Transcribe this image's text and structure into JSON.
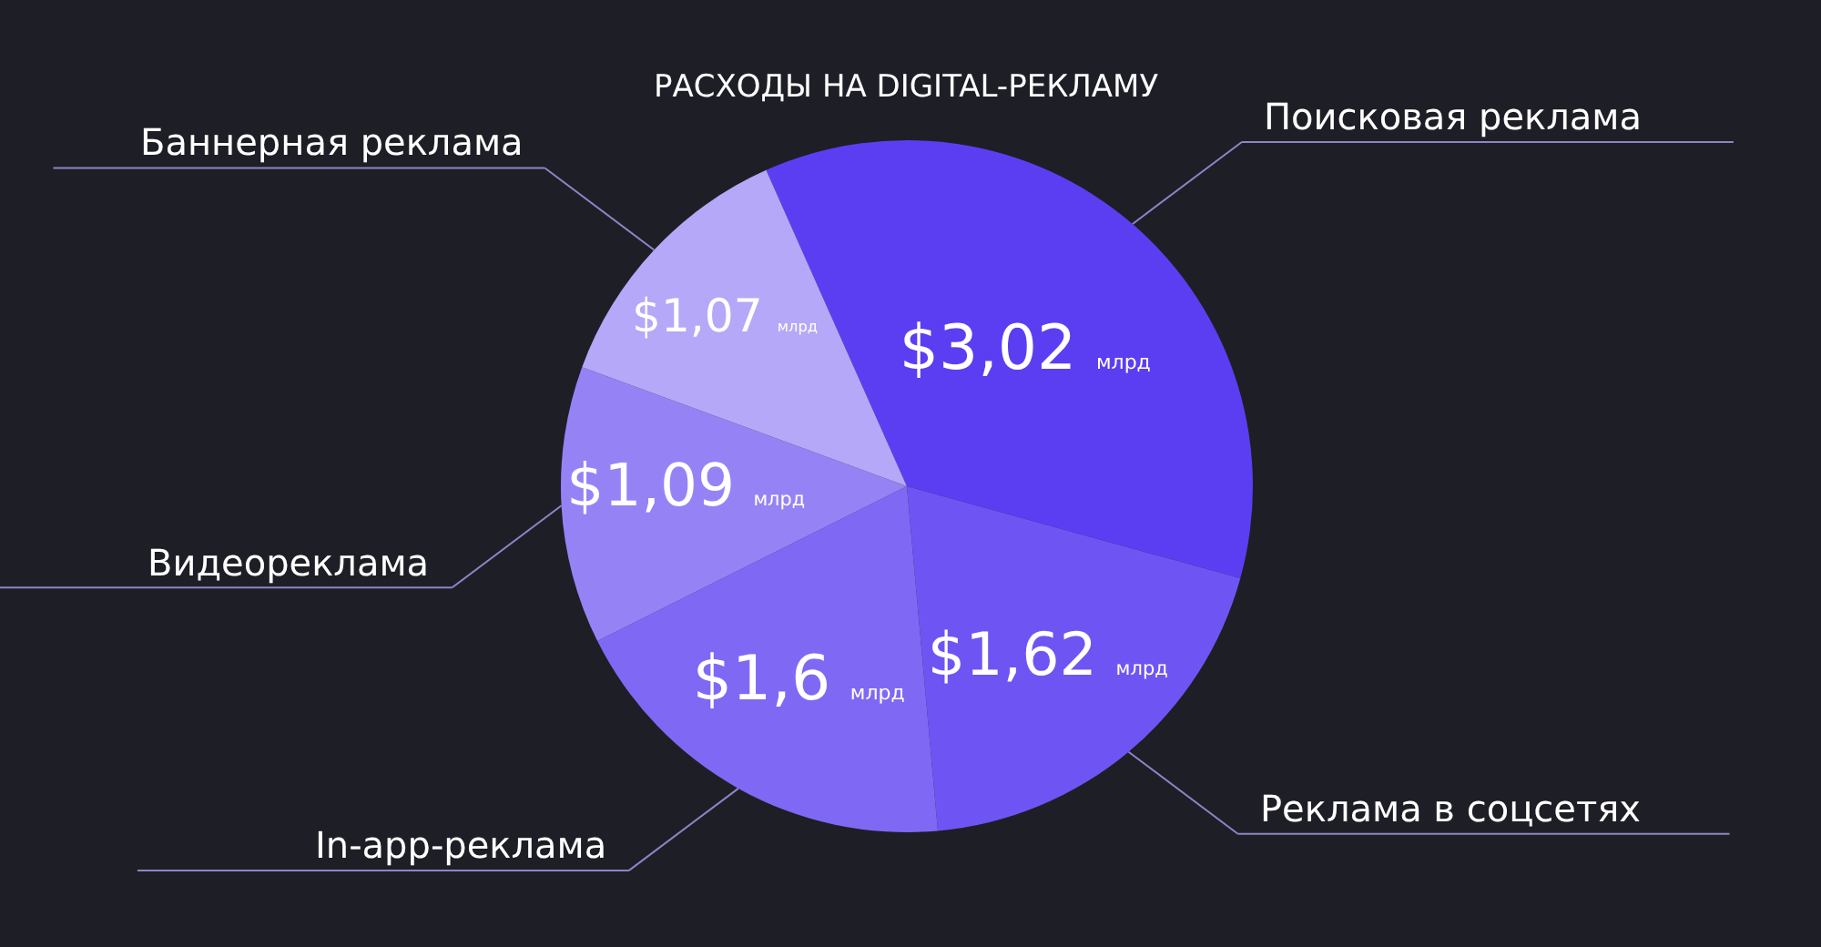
{
  "chart_data": {
    "type": "pie",
    "title": "РАСХОДЫ НА DIGITAL-РЕКЛАМУ",
    "categories": [
      "Поисковая реклама",
      "Реклама в соцсетях",
      "In-app-реклама",
      "Видеореклама",
      "Баннерная реклама"
    ],
    "values": [
      3.02,
      1.62,
      1.6,
      1.09,
      1.07
    ],
    "value_labels": [
      "$3,02 млрд",
      "$1,62 млрд",
      "$1,6 млрд",
      "$1,09 млрд",
      "$1,07 млрд"
    ],
    "colors": [
      "#5b3ef2",
      "#6e55f3",
      "#7f69f4",
      "#9583f6",
      "#b5a8f8"
    ],
    "legend": false
  }
}
